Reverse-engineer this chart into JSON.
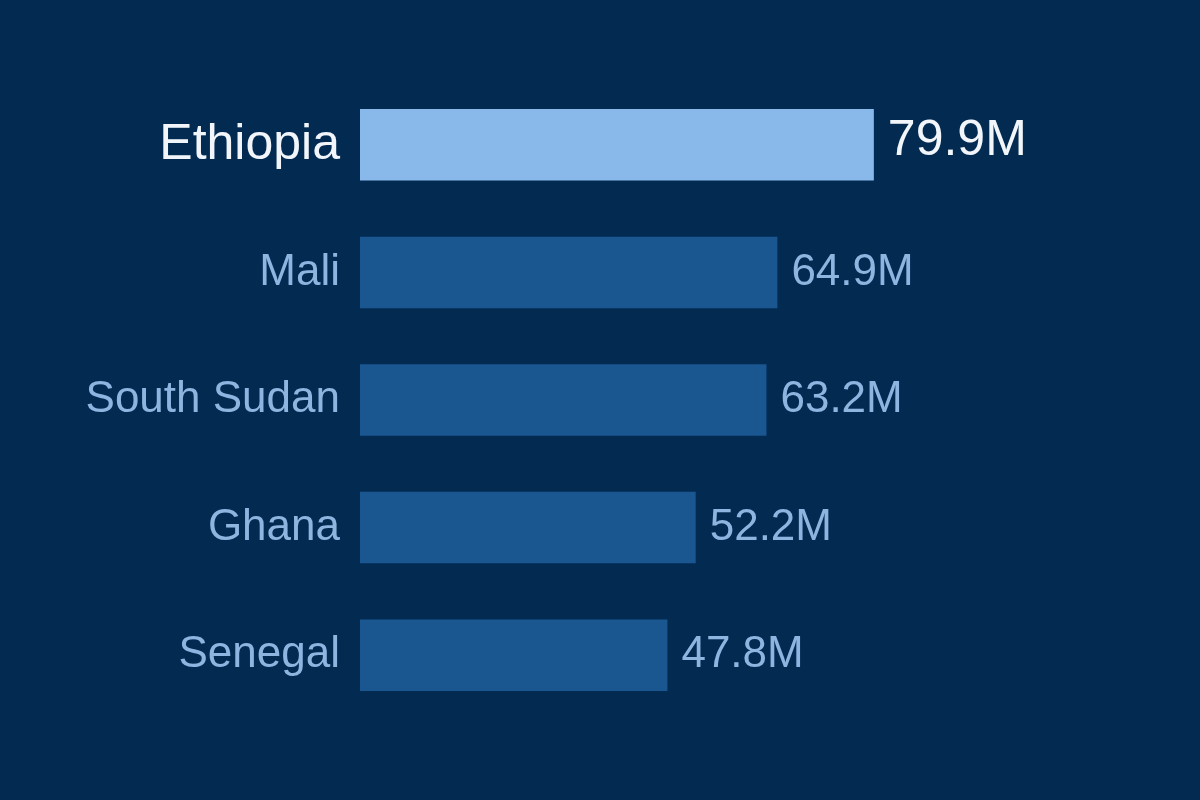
{
  "chart_data": {
    "type": "bar",
    "orientation": "horizontal",
    "categories": [
      "Ethiopia",
      "Mali",
      "South Sudan",
      "Ghana",
      "Senegal"
    ],
    "values": [
      79.9,
      64.9,
      63.2,
      52.2,
      47.8
    ],
    "value_labels": [
      "79.9M",
      "64.9M",
      "63.2M",
      "52.2M",
      "47.8M"
    ],
    "colors": [
      "#89b8ea",
      "#1a568f",
      "#1a568f",
      "#1a568f",
      "#1a568f"
    ],
    "grid": false,
    "legend": false
  }
}
